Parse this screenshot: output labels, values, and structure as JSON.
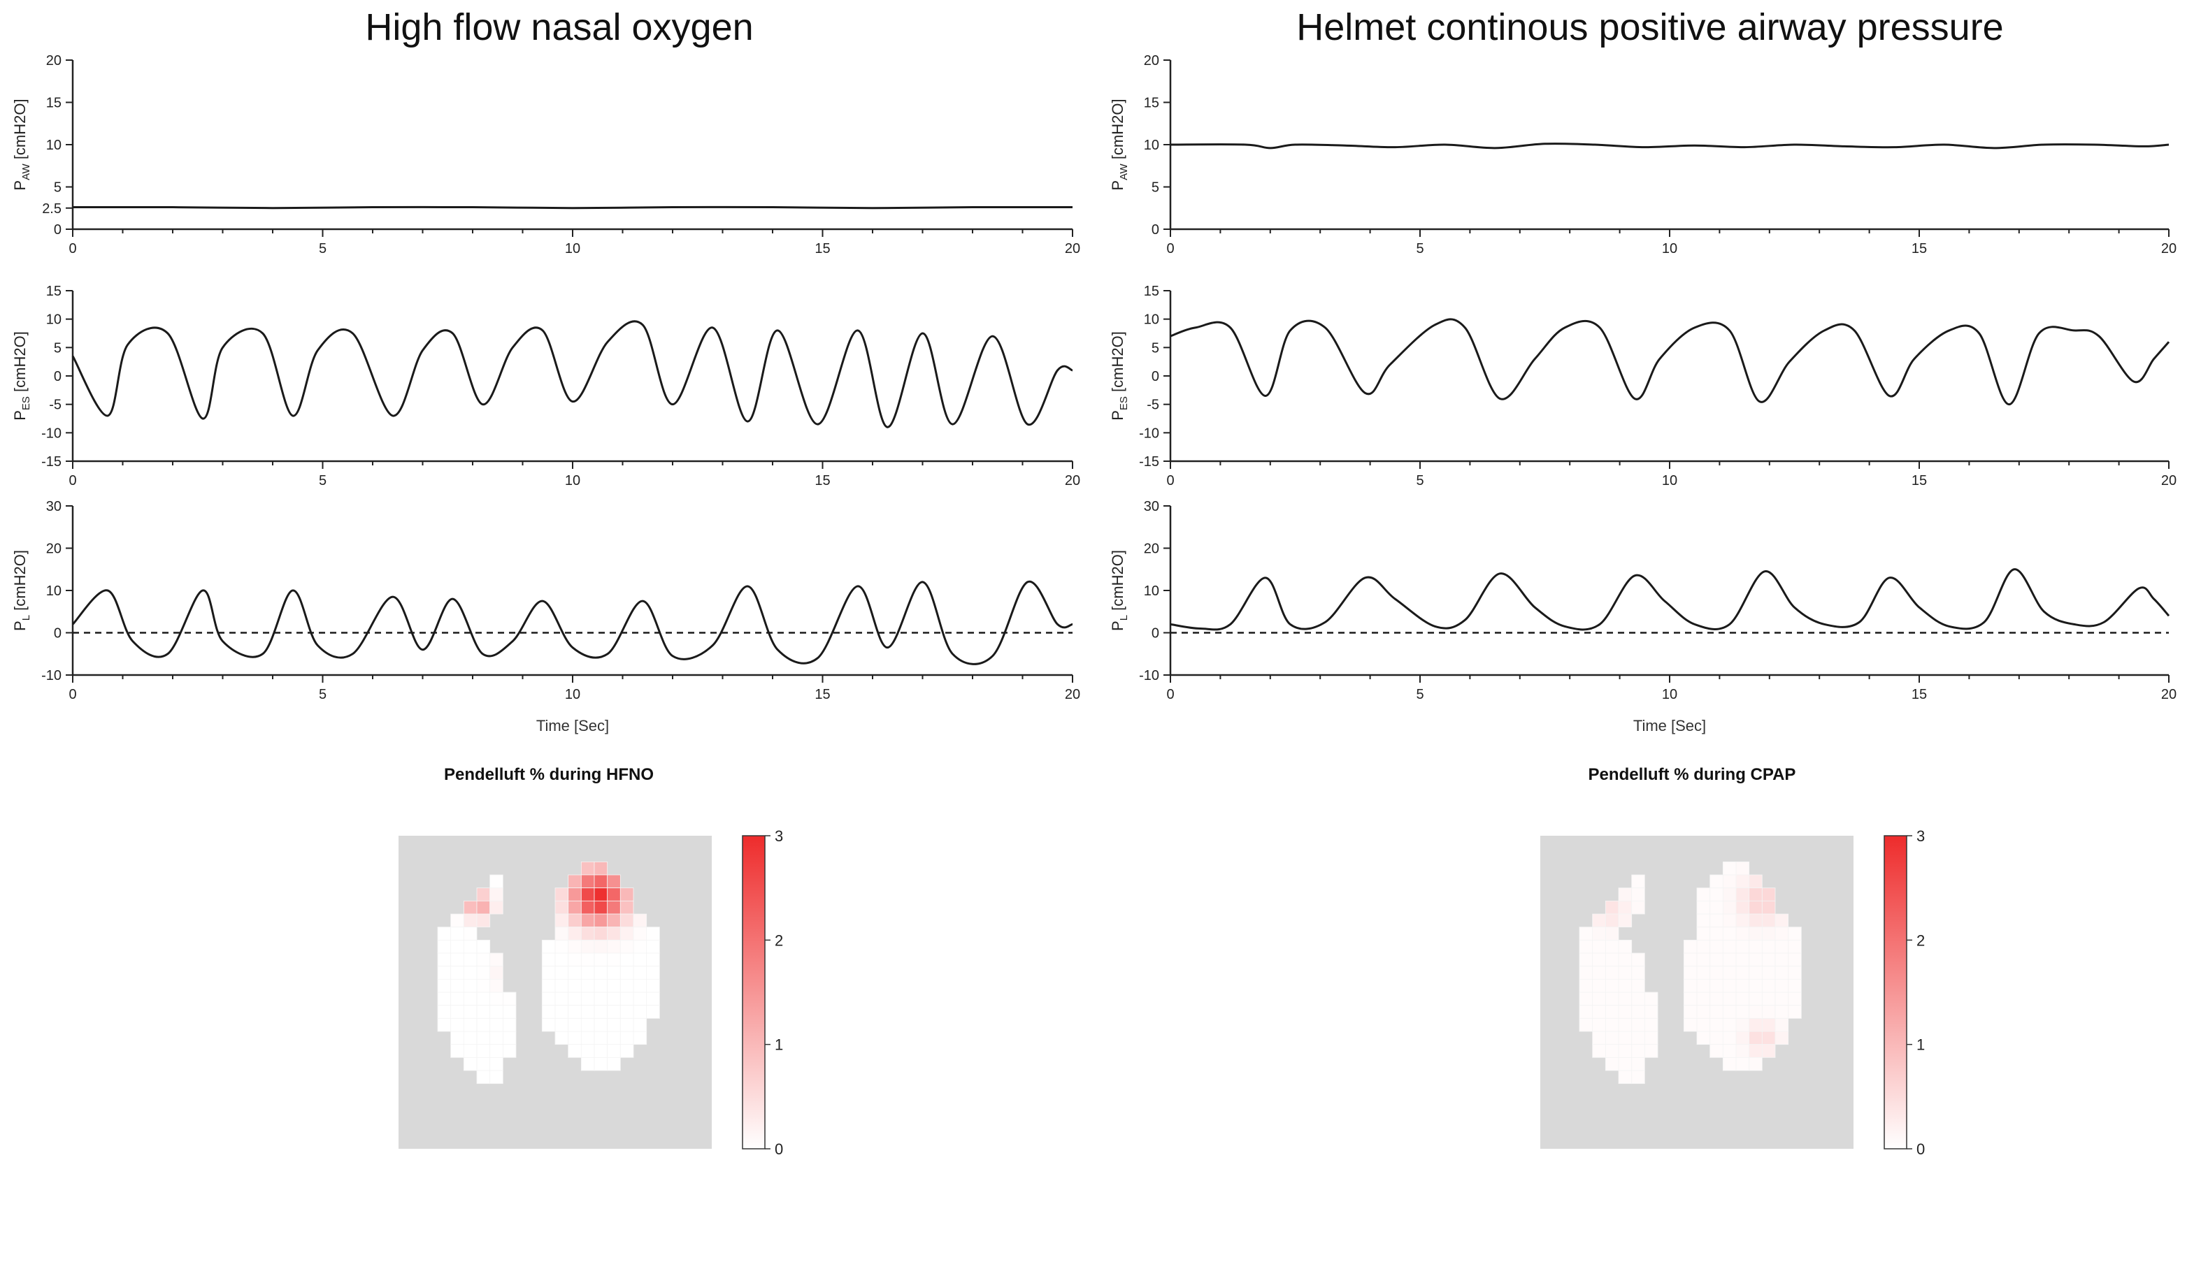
{
  "columns": [
    {
      "title": "High flow nasal oxygen",
      "xlabel": "Time [Sec]",
      "heatmap_title": "Pendelluft  % during HFNO",
      "hotspot_scale": 1.0
    },
    {
      "title": "Helmet continous positive airway pressure",
      "xlabel": "Time [Sec]",
      "heatmap_title": "Pendelluft  % during CPAP",
      "hotspot_scale": 0.25
    }
  ],
  "colors": {
    "line": "#1a1a1a",
    "heat_max": "#ee2c2c",
    "heat_bg": "#d9d9d9",
    "heat_zero": "#ffffff"
  },
  "chart_data": [
    {
      "type": "line",
      "id": "hfno-paw",
      "title": "High flow nasal oxygen",
      "ylabel": "PAW [cmH2O]",
      "ylabel_main": "P",
      "ylabel_sub": "AW",
      "ylabel_rest": " [cmH2O]",
      "xlim": [
        0,
        20
      ],
      "ylim": [
        0,
        20
      ],
      "xticks": [
        0,
        5,
        10,
        15,
        20
      ],
      "yticks": [
        0,
        2.5,
        5,
        10,
        15,
        20
      ],
      "ytick_labels": [
        "0",
        "2.5",
        "5",
        "10",
        "15",
        "20"
      ],
      "baseline": null,
      "series": [
        {
          "name": "PAW",
          "x": [
            0,
            2,
            4,
            6,
            8,
            10,
            12,
            14,
            16,
            18,
            20
          ],
          "y": [
            2.6,
            2.6,
            2.5,
            2.6,
            2.6,
            2.5,
            2.6,
            2.6,
            2.5,
            2.6,
            2.6
          ]
        }
      ]
    },
    {
      "type": "line",
      "id": "hfno-pes",
      "ylabel": "PES [cmH2O]",
      "ylabel_main": "P",
      "ylabel_sub": "ES",
      "ylabel_rest": " [cmH2O]",
      "xlim": [
        0,
        20
      ],
      "ylim": [
        -15,
        15
      ],
      "xticks": [
        0,
        5,
        10,
        15,
        20
      ],
      "yticks": [
        -15,
        -10,
        -5,
        0,
        5,
        10,
        15
      ],
      "ytick_labels": [
        "-15",
        "-10",
        "-5",
        "0",
        "5",
        "10",
        "15"
      ],
      "baseline": null,
      "series": [
        {
          "name": "PES",
          "x": [
            0,
            0.7,
            1.1,
            1.9,
            2.6,
            3.0,
            3.8,
            4.4,
            4.9,
            5.6,
            6.4,
            7.0,
            7.6,
            8.2,
            8.8,
            9.4,
            10.0,
            10.7,
            11.4,
            12.0,
            12.8,
            13.5,
            14.1,
            14.9,
            15.7,
            16.3,
            17.0,
            17.6,
            18.4,
            19.1,
            19.7,
            20.0
          ],
          "y": [
            3.5,
            -7.0,
            5.5,
            7.5,
            -7.5,
            5.0,
            7.5,
            -7.0,
            4.5,
            7.5,
            -7.0,
            4.5,
            7.5,
            -5.0,
            5.0,
            8.0,
            -4.5,
            6.0,
            9.0,
            -5.0,
            8.5,
            -8.0,
            8.0,
            -8.5,
            8.0,
            -9.0,
            7.5,
            -8.5,
            7.0,
            -8.5,
            1.0,
            1.0
          ]
        }
      ]
    },
    {
      "type": "line",
      "id": "hfno-pl",
      "ylabel": "PL [cmH2O]",
      "ylabel_main": "P",
      "ylabel_sub": "L",
      "ylabel_rest": " [cmH2O]",
      "xlim": [
        0,
        20
      ],
      "ylim": [
        -10,
        30
      ],
      "xticks": [
        0,
        5,
        10,
        15,
        20
      ],
      "yticks": [
        -10,
        0,
        10,
        20,
        30
      ],
      "ytick_labels": [
        "-10",
        "0",
        "10",
        "20",
        "30"
      ],
      "baseline": 0,
      "series": [
        {
          "name": "PL",
          "x": [
            0,
            0.7,
            1.2,
            1.9,
            2.6,
            3.0,
            3.8,
            4.4,
            4.9,
            5.6,
            6.4,
            7.0,
            7.6,
            8.2,
            8.8,
            9.4,
            10.0,
            10.7,
            11.4,
            12.0,
            12.8,
            13.5,
            14.1,
            14.9,
            15.7,
            16.3,
            17.0,
            17.6,
            18.4,
            19.1,
            19.7,
            20.0
          ],
          "y": [
            2.0,
            10.0,
            -2.0,
            -5.0,
            10.0,
            -2.0,
            -5.0,
            10.0,
            -3.0,
            -5.0,
            8.5,
            -4.0,
            8.0,
            -5.0,
            -2.0,
            7.5,
            -3.5,
            -5.0,
            7.5,
            -5.5,
            -3.0,
            11.0,
            -4.0,
            -6.0,
            11.0,
            -3.5,
            12.0,
            -5.0,
            -5.5,
            12.0,
            2.0,
            2.0
          ]
        }
      ]
    },
    {
      "type": "line",
      "id": "cpap-paw",
      "title": "Helmet continous positive airway pressure",
      "ylabel": "PAW [cmH2O]",
      "ylabel_main": "P",
      "ylabel_sub": "AW",
      "ylabel_rest": " [cmH2O]",
      "xlim": [
        0,
        20
      ],
      "ylim": [
        0,
        20
      ],
      "xticks": [
        0,
        5,
        10,
        15,
        20
      ],
      "yticks": [
        0,
        5,
        10,
        15,
        20
      ],
      "ytick_labels": [
        "0",
        "5",
        "10",
        "15",
        "20"
      ],
      "baseline": null,
      "series": [
        {
          "name": "PAW",
          "x": [
            0,
            1.5,
            2.0,
            2.5,
            3.5,
            4.5,
            5.5,
            6.5,
            7.5,
            8.5,
            9.5,
            10.5,
            11.5,
            12.5,
            13.5,
            14.5,
            15.5,
            16.5,
            17.5,
            18.5,
            19.5,
            20.0
          ],
          "y": [
            10.0,
            10.0,
            9.6,
            10.0,
            9.9,
            9.7,
            10.0,
            9.6,
            10.1,
            10.0,
            9.7,
            9.9,
            9.7,
            10.0,
            9.8,
            9.7,
            10.0,
            9.6,
            10.0,
            10.0,
            9.8,
            10.0
          ]
        }
      ]
    },
    {
      "type": "line",
      "id": "cpap-pes",
      "ylabel": "PES [cmH2O]",
      "ylabel_main": "P",
      "ylabel_sub": "ES",
      "ylabel_rest": " [cmH2O]",
      "xlim": [
        0,
        20
      ],
      "ylim": [
        -15,
        15
      ],
      "xticks": [
        0,
        5,
        10,
        15,
        20
      ],
      "yticks": [
        -15,
        -10,
        -5,
        0,
        5,
        10,
        15
      ],
      "ytick_labels": [
        "-15",
        "-10",
        "-5",
        "0",
        "5",
        "10",
        "15"
      ],
      "baseline": null,
      "series": [
        {
          "name": "PES",
          "x": [
            0,
            0.5,
            1.2,
            1.9,
            2.4,
            3.1,
            3.9,
            4.4,
            5.3,
            5.9,
            6.6,
            7.3,
            7.9,
            8.6,
            9.3,
            9.8,
            10.5,
            11.2,
            11.8,
            12.4,
            13.1,
            13.7,
            14.4,
            14.9,
            15.6,
            16.2,
            16.8,
            17.4,
            18.1,
            18.6,
            19.3,
            19.7,
            20.0
          ],
          "y": [
            7.0,
            8.5,
            8.5,
            -3.5,
            8.0,
            8.5,
            -3.0,
            2.0,
            9.0,
            8.5,
            -4.0,
            3.0,
            8.5,
            8.5,
            -4.0,
            3.0,
            8.5,
            8.0,
            -4.5,
            2.5,
            8.0,
            8.0,
            -3.5,
            3.0,
            8.0,
            7.5,
            -5.0,
            7.5,
            8.0,
            7.0,
            -1.0,
            3.0,
            6.0
          ]
        }
      ]
    },
    {
      "type": "line",
      "id": "cpap-pl",
      "ylabel": "PL [cmH2O]",
      "ylabel_main": "P",
      "ylabel_sub": "L",
      "ylabel_rest": " [cmH2O]",
      "xlim": [
        0,
        20
      ],
      "ylim": [
        -10,
        30
      ],
      "xticks": [
        0,
        5,
        10,
        15,
        20
      ],
      "yticks": [
        -10,
        0,
        10,
        20,
        30
      ],
      "ytick_labels": [
        "-10",
        "0",
        "10",
        "20",
        "30"
      ],
      "baseline": 0,
      "series": [
        {
          "name": "PL",
          "x": [
            0,
            0.6,
            1.2,
            1.9,
            2.4,
            3.1,
            3.9,
            4.5,
            5.3,
            5.9,
            6.6,
            7.3,
            7.9,
            8.6,
            9.3,
            9.9,
            10.5,
            11.2,
            11.9,
            12.5,
            13.1,
            13.8,
            14.4,
            15.0,
            15.6,
            16.3,
            16.9,
            17.5,
            18.1,
            18.7,
            19.4,
            19.7,
            20.0
          ],
          "y": [
            2.0,
            1.0,
            2.0,
            13.0,
            2.0,
            2.5,
            13.0,
            8.0,
            1.5,
            3.0,
            14.0,
            6.0,
            1.5,
            2.0,
            13.5,
            7.5,
            2.0,
            2.0,
            14.5,
            6.0,
            2.0,
            2.5,
            13.0,
            6.0,
            1.5,
            2.5,
            15.0,
            5.0,
            2.0,
            2.5,
            10.5,
            8.0,
            4.0
          ]
        }
      ]
    },
    {
      "type": "heatmap",
      "id": "hfno-heatmap",
      "title": "Pendelluft  % during HFNO",
      "colorbar_range": [
        0,
        3
      ],
      "colorbar_ticks": [
        0,
        1,
        2,
        3
      ],
      "colorbar_tick_labels": [
        "0",
        "1",
        "2",
        "3"
      ],
      "peak_value": 3,
      "hotspots": [
        {
          "region": "right lung upper",
          "value": 3.0
        },
        {
          "region": "left lung upper",
          "value": 1.3
        },
        {
          "region": "left lung middle",
          "value": 0.2
        }
      ]
    },
    {
      "type": "heatmap",
      "id": "cpap-heatmap",
      "title": "Pendelluft  % during CPAP",
      "colorbar_range": [
        0,
        3
      ],
      "colorbar_ticks": [
        0,
        1,
        2,
        3
      ],
      "colorbar_tick_labels": [
        "0",
        "1",
        "2",
        "3"
      ],
      "peak_value": 0.6,
      "hotspots": [
        {
          "region": "right lung upper edge",
          "value": 0.6
        },
        {
          "region": "left lung upper",
          "value": 0.3
        },
        {
          "region": "right lung lower",
          "value": 0.4
        }
      ]
    }
  ]
}
